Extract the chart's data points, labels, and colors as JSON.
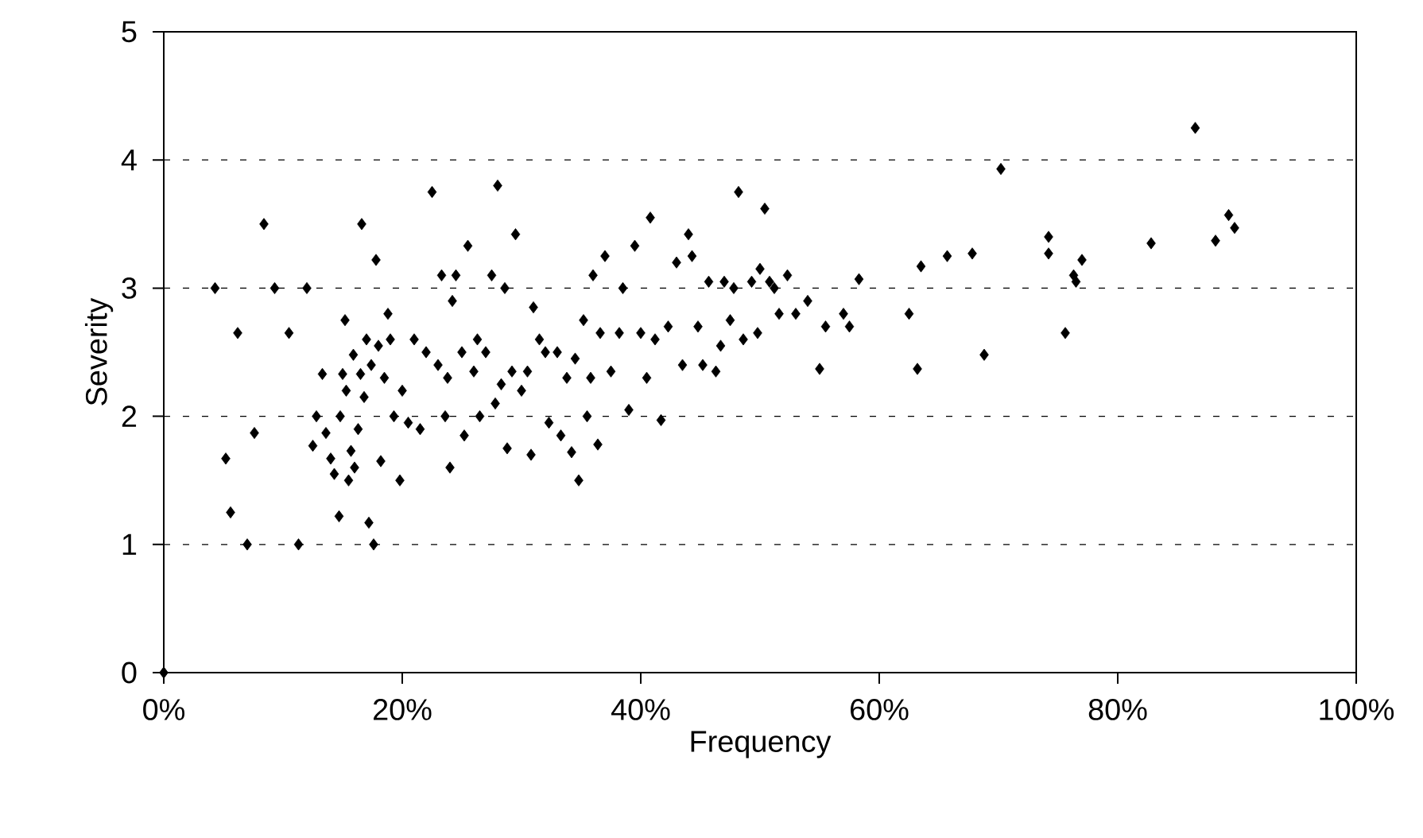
{
  "chart_data": {
    "type": "scatter",
    "xlabel": "Frequency",
    "ylabel": "Severity",
    "xlim": [
      0,
      100
    ],
    "ylim": [
      0,
      5
    ],
    "xticks": [
      {
        "value": 0,
        "label": "0%"
      },
      {
        "value": 20,
        "label": "20%"
      },
      {
        "value": 40,
        "label": "40%"
      },
      {
        "value": 60,
        "label": "60%"
      },
      {
        "value": 80,
        "label": "80%"
      },
      {
        "value": 100,
        "label": "100%"
      }
    ],
    "yticks": [
      0,
      1,
      2,
      3,
      4,
      5
    ],
    "grid": "y",
    "marker": "diamond",
    "series": [
      {
        "color": "#000000",
        "x": [
          0,
          4.3,
          5.2,
          5.6,
          6.2,
          7,
          7.6,
          8.4,
          9.3,
          10.5,
          11.3,
          12,
          12.5,
          12.8,
          13.3,
          13.6,
          14,
          14.3,
          14.7,
          14.8,
          15,
          15.2,
          15.3,
          15.5,
          15.7,
          15.9,
          16,
          16.3,
          16.5,
          16.6,
          16.8,
          17,
          17.2,
          17.4,
          17.6,
          17.8,
          18,
          18.2,
          18.5,
          18.8,
          19,
          19.3,
          19.8,
          20,
          20.5,
          21,
          21.5,
          22,
          22.5,
          23,
          23.3,
          23.6,
          23.8,
          24,
          24.2,
          24.5,
          25,
          25.2,
          25.5,
          26,
          26.3,
          26.5,
          27,
          27.5,
          27.8,
          28,
          28.3,
          28.6,
          28.8,
          29.2,
          29.5,
          30,
          30.5,
          30.8,
          31,
          31.5,
          32,
          32.3,
          33,
          33.3,
          33.8,
          34.2,
          34.5,
          34.8,
          35.2,
          35.5,
          35.8,
          36,
          36.4,
          36.6,
          37,
          37.5,
          38.2,
          38.5,
          39,
          39.5,
          40,
          40.5,
          40.8,
          41.2,
          41.7,
          42.3,
          43,
          43.5,
          44,
          44.3,
          44.8,
          45.2,
          45.7,
          46.3,
          46.7,
          47,
          47.5,
          47.8,
          48.2,
          48.6,
          49.3,
          49.8,
          50,
          50.4,
          50.8,
          51.2,
          51.6,
          52.3,
          53,
          54,
          55,
          55.5,
          57,
          57.5,
          58.3,
          62.5,
          63.2,
          63.5,
          65.7,
          67.8,
          68.8,
          70.2,
          74.2,
          74.2,
          75.6,
          76.3,
          76.5,
          77,
          82.8,
          86.5,
          88.2,
          89.3,
          89.8
        ],
        "values": [
          0,
          3.0,
          1.67,
          1.25,
          2.65,
          1.0,
          1.87,
          3.5,
          3.0,
          2.65,
          1.0,
          3.0,
          1.77,
          2.0,
          2.33,
          1.87,
          1.67,
          1.55,
          1.22,
          2.0,
          2.33,
          2.75,
          2.2,
          1.5,
          1.73,
          2.48,
          1.6,
          1.9,
          2.33,
          3.5,
          2.15,
          2.6,
          1.17,
          2.4,
          1.0,
          3.22,
          2.55,
          1.65,
          2.3,
          2.8,
          2.6,
          2.0,
          1.5,
          2.2,
          1.95,
          2.6,
          1.9,
          2.5,
          3.75,
          2.4,
          3.1,
          2.0,
          2.3,
          1.6,
          2.9,
          3.1,
          2.5,
          1.85,
          3.33,
          2.35,
          2.6,
          2.0,
          2.5,
          3.1,
          2.1,
          3.8,
          2.25,
          3.0,
          1.75,
          2.35,
          3.42,
          2.2,
          2.35,
          1.7,
          2.85,
          2.6,
          2.5,
          1.95,
          2.5,
          1.85,
          2.3,
          1.72,
          2.45,
          1.5,
          2.75,
          2.0,
          2.3,
          3.1,
          1.78,
          2.65,
          3.25,
          2.35,
          2.65,
          3.0,
          2.05,
          3.33,
          2.65,
          2.3,
          3.55,
          2.6,
          1.97,
          2.7,
          3.2,
          2.4,
          3.42,
          3.25,
          2.7,
          2.4,
          3.05,
          2.35,
          2.55,
          3.05,
          2.75,
          3.0,
          3.75,
          2.6,
          3.05,
          2.65,
          3.15,
          3.62,
          3.05,
          3.0,
          2.8,
          3.1,
          2.8,
          2.9,
          2.37,
          2.7,
          2.8,
          2.7,
          3.07,
          2.8,
          2.37,
          3.17,
          3.25,
          3.27,
          2.48,
          3.93,
          3.27,
          3.4,
          2.65,
          3.1,
          3.05,
          3.22,
          3.35,
          4.25,
          3.37,
          3.57,
          3.47
        ]
      }
    ]
  }
}
